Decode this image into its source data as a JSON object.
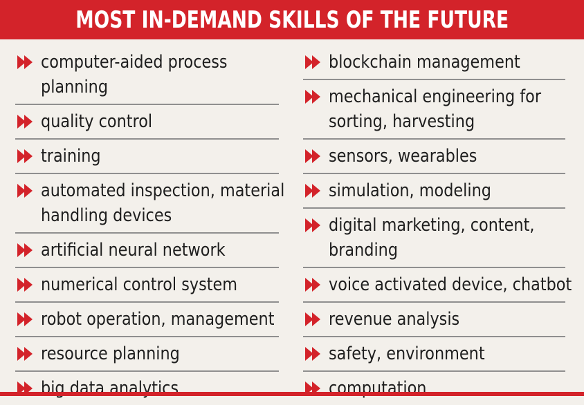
{
  "title": "MOST IN-DEMAND SKILLS OF THE FUTURE",
  "icon": "chevron-right-icon",
  "colors": {
    "accent": "#d3232a",
    "background": "#f3f0eb",
    "text": "#1e1e1e",
    "divider": "#8f8f8f"
  },
  "left_items": [
    {
      "lines": [
        "computer-aided process",
        "planning"
      ]
    },
    {
      "lines": [
        "quality control"
      ]
    },
    {
      "lines": [
        "training"
      ]
    },
    {
      "lines": [
        "automated inspection, material",
        "handling devices"
      ]
    },
    {
      "lines": [
        "artificial neural network"
      ]
    },
    {
      "lines": [
        "numerical control system"
      ]
    },
    {
      "lines": [
        "robot operation, management"
      ]
    },
    {
      "lines": [
        "resource planning"
      ]
    },
    {
      "lines": [
        "big data analytics"
      ]
    }
  ],
  "right_items": [
    {
      "lines": [
        "blockchain management"
      ]
    },
    {
      "lines": [
        "mechanical engineering for",
        "sorting, harvesting"
      ]
    },
    {
      "lines": [
        "sensors, wearables"
      ]
    },
    {
      "lines": [
        "simulation, modeling"
      ]
    },
    {
      "lines": [
        "digital marketing, content,",
        "branding"
      ]
    },
    {
      "lines": [
        "voice activated device, chatbot"
      ]
    },
    {
      "lines": [
        "revenue analysis"
      ]
    },
    {
      "lines": [
        "safety, environment"
      ]
    },
    {
      "lines": [
        "computation"
      ]
    }
  ]
}
